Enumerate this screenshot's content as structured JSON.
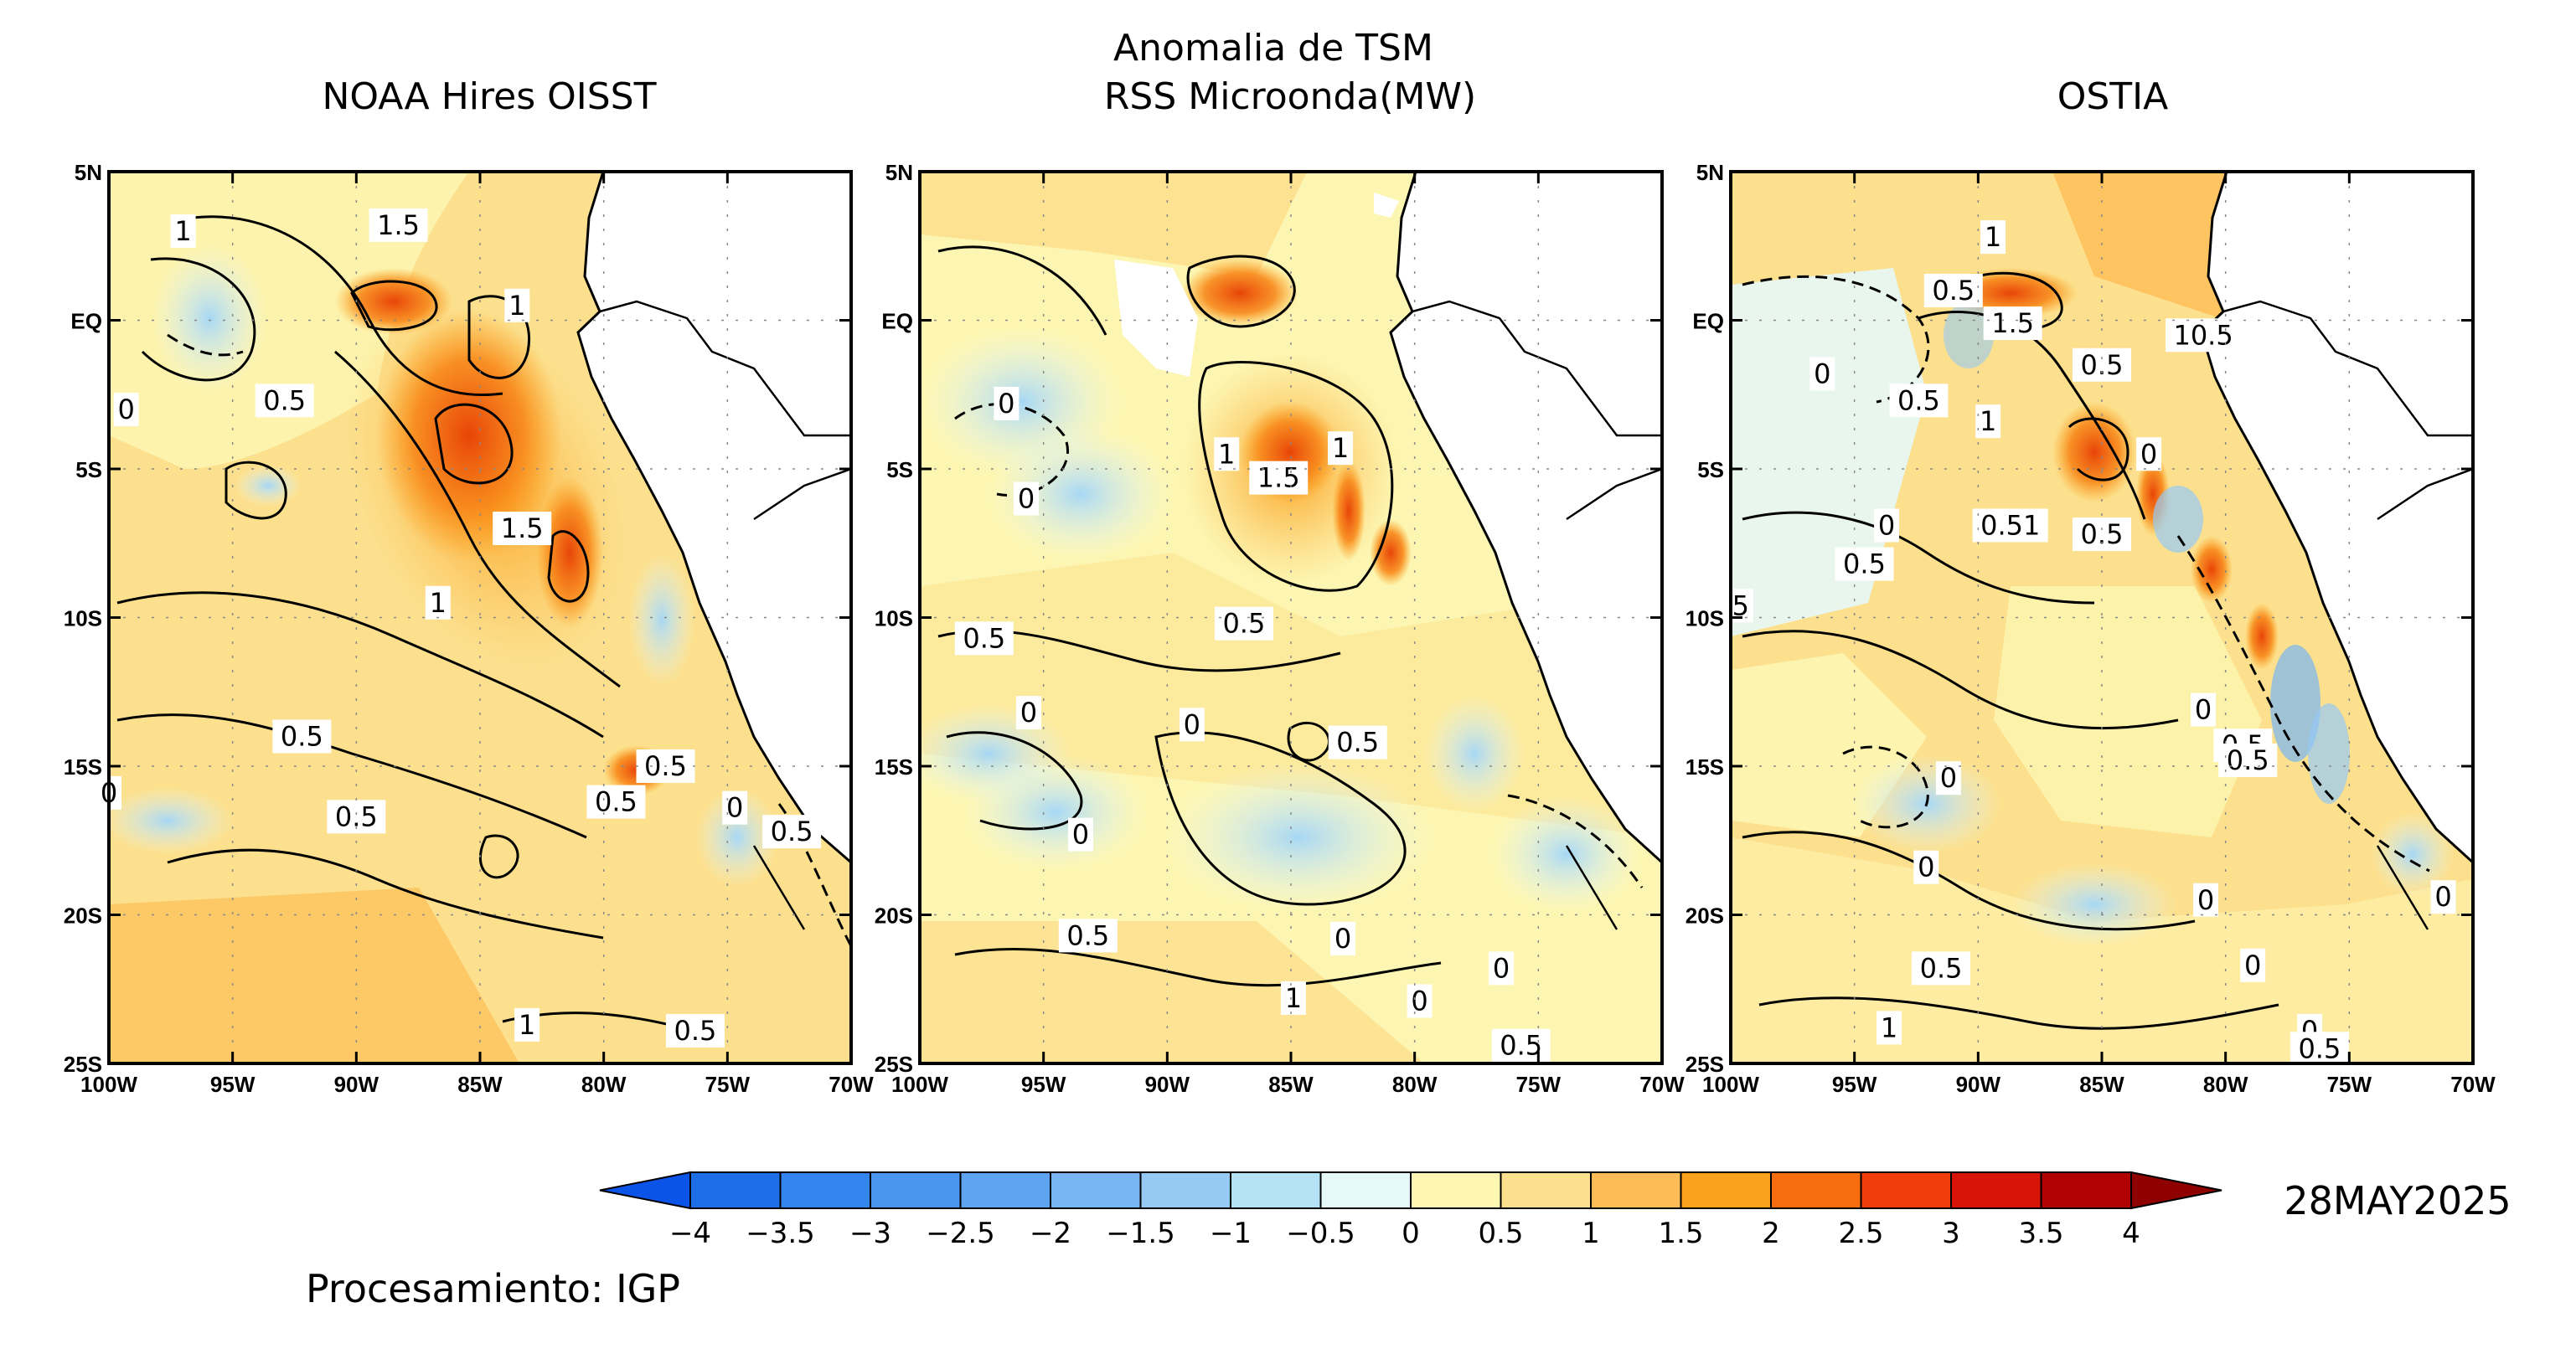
{
  "suptitle": "Anomalia de TSM",
  "panels": [
    {
      "id": "oisst",
      "title": "NOAA Hires OISST",
      "labels": [
        {
          "text": "1",
          "lon": -97.0,
          "lat": 3.0
        },
        {
          "text": "1.5",
          "lon": -88.3,
          "lat": 3.2
        },
        {
          "text": "1",
          "lon": -83.5,
          "lat": 0.5
        },
        {
          "text": "0",
          "lon": -99.3,
          "lat": -3.0
        },
        {
          "text": "0.5",
          "lon": -92.9,
          "lat": -2.7
        },
        {
          "text": "1.5",
          "lon": -83.3,
          "lat": -7.0
        },
        {
          "text": "1",
          "lon": -86.7,
          "lat": -9.5
        },
        {
          "text": "0.5",
          "lon": -92.2,
          "lat": -14.0
        },
        {
          "text": "0.5",
          "lon": -77.5,
          "lat": -15.0
        },
        {
          "text": "0",
          "lon": -100.0,
          "lat": -15.9
        },
        {
          "text": "0.5",
          "lon": -79.5,
          "lat": -16.2
        },
        {
          "text": "0.5",
          "lon": -90.0,
          "lat": -16.7
        },
        {
          "text": "0",
          "lon": -74.7,
          "lat": -16.4
        },
        {
          "text": "0.5",
          "lon": -72.4,
          "lat": -17.2
        },
        {
          "text": "1",
          "lon": -83.1,
          "lat": -23.7
        },
        {
          "text": "0.5",
          "lon": -76.3,
          "lat": -23.9
        }
      ]
    },
    {
      "id": "rss",
      "title": "RSS Microonda(MW)",
      "labels": [
        {
          "text": "0",
          "lon": -96.5,
          "lat": -2.8
        },
        {
          "text": "0",
          "lon": -95.7,
          "lat": -6.0
        },
        {
          "text": "1",
          "lon": -87.6,
          "lat": -4.5
        },
        {
          "text": "1",
          "lon": -83.0,
          "lat": -4.3
        },
        {
          "text": "1.5",
          "lon": -85.5,
          "lat": -5.3
        },
        {
          "text": "0.5",
          "lon": -97.4,
          "lat": -10.7
        },
        {
          "text": "0.5",
          "lon": -86.9,
          "lat": -10.2
        },
        {
          "text": "0",
          "lon": -95.6,
          "lat": -13.2
        },
        {
          "text": "0",
          "lon": -89.0,
          "lat": -13.6
        },
        {
          "text": "0.5",
          "lon": -82.3,
          "lat": -14.2
        },
        {
          "text": "0",
          "lon": -93.5,
          "lat": -17.3
        },
        {
          "text": "0.5",
          "lon": -93.2,
          "lat": -20.7
        },
        {
          "text": "0",
          "lon": -82.9,
          "lat": -20.8
        },
        {
          "text": "1",
          "lon": -84.9,
          "lat": -22.8
        },
        {
          "text": "0",
          "lon": -79.8,
          "lat": -22.9
        },
        {
          "text": "0",
          "lon": -76.5,
          "lat": -21.8
        },
        {
          "text": "0.5",
          "lon": -75.7,
          "lat": -24.4
        }
      ]
    },
    {
      "id": "ostia",
      "title": "OSTIA",
      "labels": [
        {
          "text": "1",
          "lon": -89.4,
          "lat": 2.8
        },
        {
          "text": "0.5",
          "lon": -91.0,
          "lat": 1.0
        },
        {
          "text": "1.5",
          "lon": -88.6,
          "lat": -0.1
        },
        {
          "text": "0.5",
          "lon": -85.0,
          "lat": -1.5
        },
        {
          "text": "10.5",
          "lon": -80.9,
          "lat": -0.5
        },
        {
          "text": "0",
          "lon": -96.3,
          "lat": -1.8
        },
        {
          "text": "0.5",
          "lon": -92.4,
          "lat": -2.7
        },
        {
          "text": "1",
          "lon": -89.6,
          "lat": -3.4
        },
        {
          "text": "0",
          "lon": -83.1,
          "lat": -4.5
        },
        {
          "text": "0",
          "lon": -93.7,
          "lat": -6.9
        },
        {
          "text": "0.51",
          "lon": -88.7,
          "lat": -6.9
        },
        {
          "text": "0.5",
          "lon": -85.0,
          "lat": -7.2
        },
        {
          "text": "0.5",
          "lon": -94.6,
          "lat": -8.2
        },
        {
          "text": "5",
          "lon": -99.6,
          "lat": -9.6
        },
        {
          "text": "0",
          "lon": -80.9,
          "lat": -13.1
        },
        {
          "text": "0.5",
          "lon": -79.3,
          "lat": -14.3
        },
        {
          "text": "0.5",
          "lon": -79.1,
          "lat": -14.8
        },
        {
          "text": "0",
          "lon": -91.2,
          "lat": -15.4
        },
        {
          "text": "0",
          "lon": -92.1,
          "lat": -18.4
        },
        {
          "text": "0",
          "lon": -80.8,
          "lat": -19.5
        },
        {
          "text": "0",
          "lon": -71.2,
          "lat": -19.4
        },
        {
          "text": "0.5",
          "lon": -91.5,
          "lat": -21.8
        },
        {
          "text": "0",
          "lon": -78.9,
          "lat": -21.7
        },
        {
          "text": "1",
          "lon": -93.6,
          "lat": -23.8
        },
        {
          "text": "0",
          "lon": -76.6,
          "lat": -23.9
        },
        {
          "text": "0.5",
          "lon": -76.2,
          "lat": -24.5
        }
      ]
    }
  ],
  "lat_ticks": [
    "5N",
    "EQ",
    "5S",
    "10S",
    "15S",
    "20S",
    "25S"
  ],
  "lon_ticks": [
    "100W",
    "95W",
    "90W",
    "85W",
    "80W",
    "75W",
    "70W"
  ],
  "colorbar": {
    "labels": [
      "-4",
      "-3.5",
      "-3",
      "-2.5",
      "-2",
      "-1.5",
      "-1",
      "-0.5",
      "0",
      "0.5",
      "1",
      "1.5",
      "2",
      "2.5",
      "3",
      "3.5",
      "4"
    ],
    "colors": [
      "#1e6ee8",
      "#3384ec",
      "#4a96ef",
      "#5ea4f1",
      "#78b6f3",
      "#97c9f5",
      "#b4e3f5",
      "#e6f8f8",
      "#fdf6b2",
      "#fce08d",
      "#fdbd56",
      "#fba11c",
      "#f86d10",
      "#f23c0a",
      "#d71407",
      "#b00202"
    ],
    "low_color": "#0c53e8",
    "high_color": "#8f0101"
  },
  "date": "28MAY2025",
  "credit": "Procesamiento: IGP"
}
